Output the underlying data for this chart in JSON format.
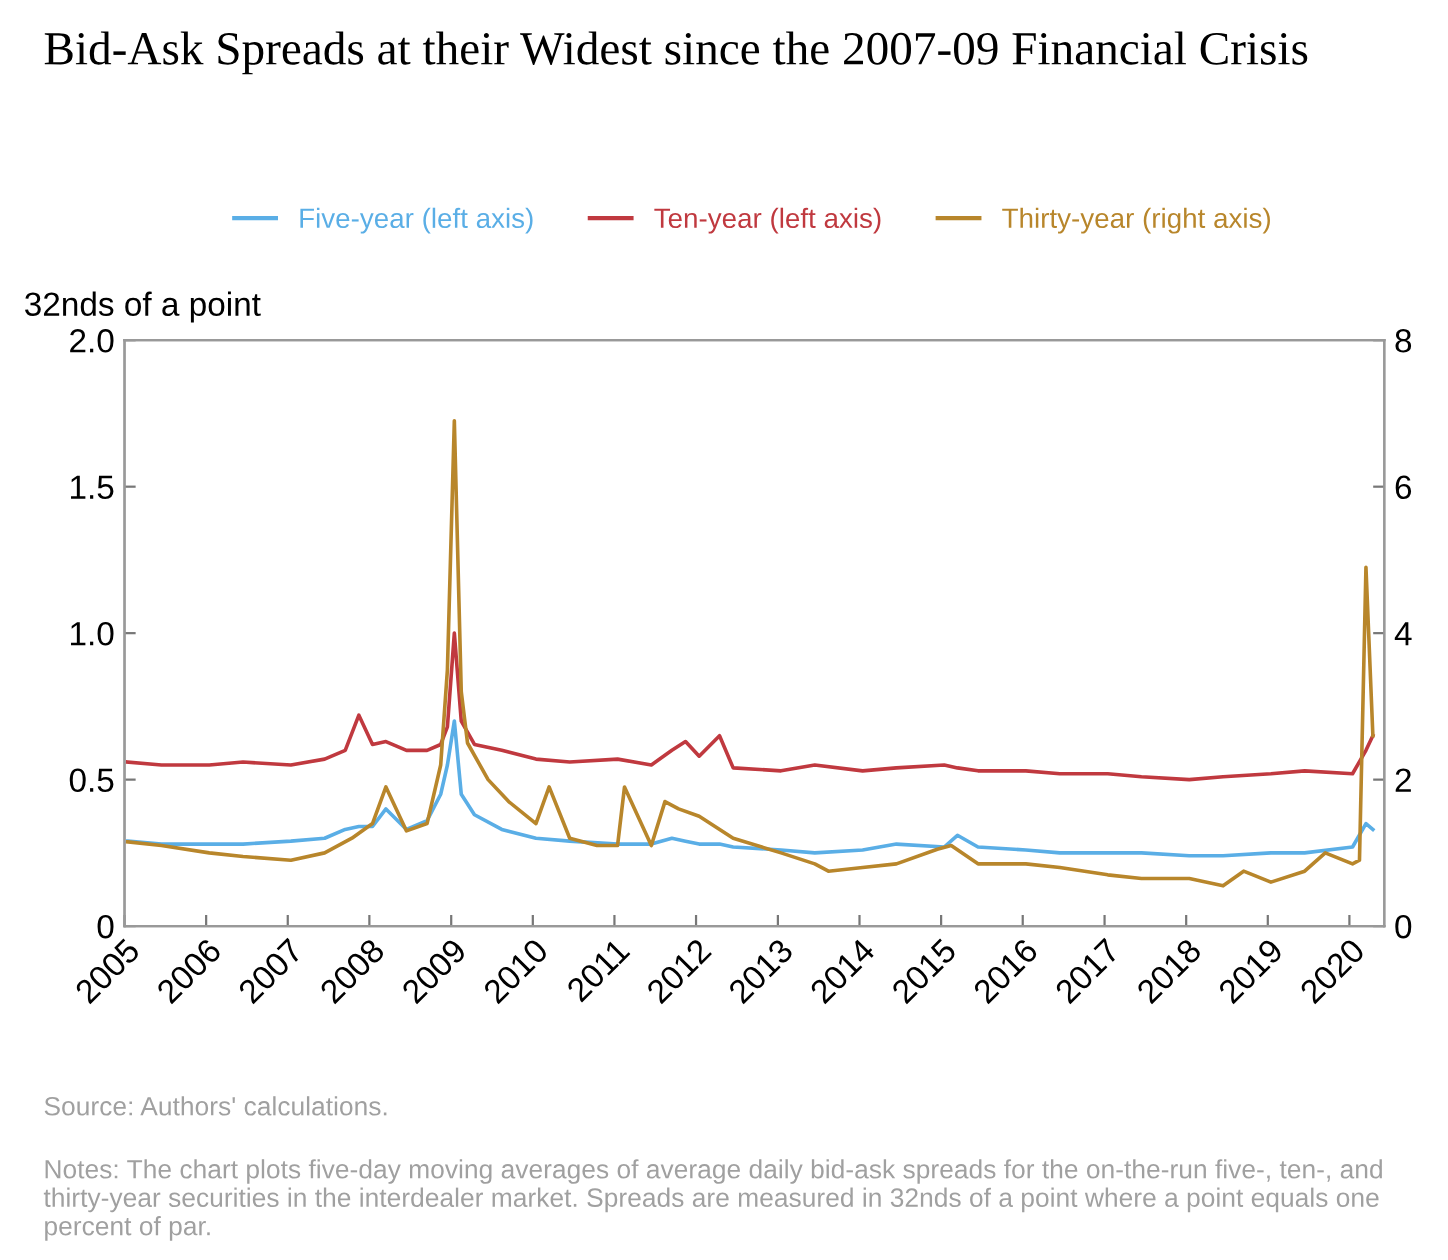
{
  "chart_data": {
    "type": "line",
    "title": "Bid-Ask Spreads at their Widest since the 2007-09 Financial Crisis",
    "ylabel": "32nds of a point",
    "x": [
      "2005-01",
      "2005-06",
      "2006-01",
      "2006-06",
      "2007-01",
      "2007-06",
      "2007-09",
      "2007-11",
      "2008-01",
      "2008-03",
      "2008-06",
      "2008-09",
      "2008-11",
      "2008-12",
      "2009-01",
      "2009-02",
      "2009-04",
      "2009-08",
      "2010-01",
      "2010-06",
      "2011-01",
      "2011-06",
      "2011-09",
      "2011-11",
      "2012-01",
      "2012-04",
      "2012-06",
      "2013-01",
      "2013-06",
      "2014-01",
      "2014-06",
      "2015-01",
      "2015-03",
      "2015-06",
      "2016-01",
      "2016-06",
      "2017-01",
      "2017-06",
      "2018-01",
      "2018-06",
      "2019-01",
      "2019-06",
      "2020-01",
      "2020-03",
      "2020-04"
    ],
    "series": [
      {
        "name": "Five-year (left axis)",
        "color": "#5aaee6",
        "values": [
          0.29,
          0.28,
          0.28,
          0.28,
          0.29,
          0.3,
          0.33,
          0.34,
          0.34,
          0.4,
          0.33,
          0.36,
          0.45,
          0.55,
          0.7,
          0.45,
          0.38,
          0.33,
          0.3,
          0.29,
          0.28,
          0.28,
          0.3,
          0.29,
          0.28,
          0.28,
          0.27,
          0.26,
          0.25,
          0.26,
          0.28,
          0.27,
          0.31,
          0.27,
          0.26,
          0.25,
          0.25,
          0.25,
          0.24,
          0.24,
          0.25,
          0.25,
          0.27,
          0.35,
          0.33
        ]
      },
      {
        "name": "Ten-year (left axis)",
        "color": "#c0393f",
        "values": [
          0.56,
          0.55,
          0.55,
          0.56,
          0.55,
          0.57,
          0.6,
          0.72,
          0.62,
          0.63,
          0.6,
          0.6,
          0.62,
          0.68,
          1.0,
          0.7,
          0.62,
          0.6,
          0.57,
          0.56,
          0.57,
          0.55,
          0.6,
          0.63,
          0.58,
          0.65,
          0.54,
          0.53,
          0.55,
          0.53,
          0.54,
          0.55,
          0.54,
          0.53,
          0.53,
          0.52,
          0.52,
          0.51,
          0.5,
          0.51,
          0.52,
          0.53,
          0.52,
          0.6,
          0.65
        ]
      },
      {
        "name": "Thirty-year (right axis)",
        "color": "#b8862b",
        "axis": "y2",
        "x": [
          "2005-01",
          "2005-06",
          "2006-01",
          "2006-06",
          "2007-01",
          "2007-06",
          "2007-10",
          "2008-01",
          "2008-03",
          "2008-06",
          "2008-09",
          "2008-11",
          "2008-12",
          "2009-01",
          "2009-02",
          "2009-03",
          "2009-06",
          "2009-09",
          "2010-01",
          "2010-03",
          "2010-06",
          "2010-10",
          "2011-01",
          "2011-02",
          "2011-06",
          "2011-08",
          "2011-10",
          "2012-01",
          "2012-06",
          "2013-01",
          "2013-06",
          "2013-08",
          "2014-01",
          "2014-06",
          "2014-12",
          "2015-02",
          "2015-06",
          "2016-01",
          "2016-06",
          "2017-01",
          "2017-06",
          "2018-01",
          "2018-06",
          "2018-09",
          "2019-01",
          "2019-06",
          "2019-09",
          "2020-01",
          "2020-02",
          "2020-03",
          "2020-04"
        ],
        "values": [
          1.15,
          1.1,
          1.0,
          0.95,
          0.9,
          1.0,
          1.2,
          1.4,
          1.9,
          1.3,
          1.4,
          2.2,
          3.5,
          6.9,
          3.2,
          2.5,
          2.0,
          1.7,
          1.4,
          1.9,
          1.2,
          1.1,
          1.1,
          1.9,
          1.1,
          1.7,
          1.6,
          1.5,
          1.2,
          1.0,
          0.85,
          0.75,
          0.8,
          0.85,
          1.05,
          1.1,
          0.85,
          0.85,
          0.8,
          0.7,
          0.65,
          0.65,
          0.55,
          0.75,
          0.6,
          0.75,
          1.0,
          0.85,
          0.9,
          4.9,
          2.6
        ]
      }
    ],
    "xlim": [
      "2005-01-01",
      "2020-06-05"
    ],
    "xticks": [
      {
        "value": "2005-01-01",
        "label": "2005"
      },
      {
        "value": "2006-01-01",
        "label": "2006"
      },
      {
        "value": "2007-01-01",
        "label": "2007"
      },
      {
        "value": "2008-01-01",
        "label": "2008"
      },
      {
        "value": "2009-01-01",
        "label": "2009"
      },
      {
        "value": "2010-01-01",
        "label": "2010"
      },
      {
        "value": "2011-01-01",
        "label": "2011"
      },
      {
        "value": "2012-01-01",
        "label": "2012"
      },
      {
        "value": "2013-01-01",
        "label": "2013"
      },
      {
        "value": "2014-01-01",
        "label": "2014"
      },
      {
        "value": "2015-01-01",
        "label": "2015"
      },
      {
        "value": "2016-01-01",
        "label": "2016"
      },
      {
        "value": "2017-01-01",
        "label": "2017"
      },
      {
        "value": "2018-01-01",
        "label": "2018"
      },
      {
        "value": "2019-01-01",
        "label": "2019"
      },
      {
        "value": "2020-01-01",
        "label": "2020"
      }
    ],
    "ylim": [
      0,
      2.0
    ],
    "yticks": [
      {
        "value": 0,
        "label": "0"
      },
      {
        "value": 0.5,
        "label": "0.5"
      },
      {
        "value": 1.0,
        "label": "1.0"
      },
      {
        "value": 1.5,
        "label": "1.5"
      },
      {
        "value": 2.0,
        "label": "2.0"
      }
    ],
    "y2lim": [
      0,
      8
    ],
    "y2ticks": [
      0,
      2,
      4,
      6,
      8
    ],
    "legend": "top",
    "grid": false,
    "annotations": [
      "Source: Authors' calculations.",
      "Notes: The chart plots five-day moving averages of average daily bid-ask spreads for the on-the-run five-, ten-, and thirty-year securities in the interdealer market. Spreads are measured in 32nds of a point where a point equals one percent of par."
    ]
  }
}
